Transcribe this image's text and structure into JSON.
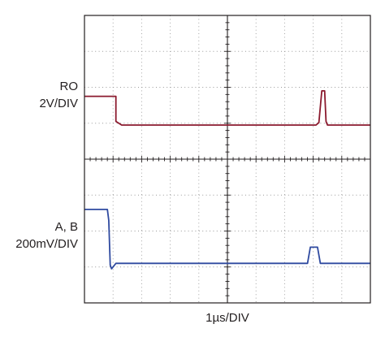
{
  "chart_data": {
    "type": "line",
    "title": "",
    "xlabel": "1µs/DIV",
    "grid": true,
    "x_divisions": 10,
    "y_divisions": 8,
    "x_unit_per_div": "1µs",
    "channels": [
      {
        "name": "RO",
        "scale_label": "2V/DIV",
        "color": "#8b1a2e",
        "trace_div": [
          [
            0.0,
            5.75
          ],
          [
            1.1,
            5.75
          ],
          [
            1.1,
            5.05
          ],
          [
            1.3,
            4.95
          ],
          [
            1.7,
            4.95
          ],
          [
            8.1,
            4.95
          ],
          [
            8.2,
            5.02
          ],
          [
            8.3,
            5.9
          ],
          [
            8.4,
            5.9
          ],
          [
            8.45,
            5.05
          ],
          [
            8.5,
            4.95
          ],
          [
            10.0,
            4.95
          ]
        ]
      },
      {
        "name": "A, B",
        "scale_label": "200mV/DIV",
        "color": "#2f4aa0",
        "trace_div": [
          [
            0.0,
            2.6
          ],
          [
            0.8,
            2.6
          ],
          [
            0.85,
            2.3
          ],
          [
            0.9,
            1.05
          ],
          [
            0.95,
            0.95
          ],
          [
            1.1,
            1.1
          ],
          [
            1.6,
            1.1
          ],
          [
            2.0,
            1.1
          ],
          [
            7.8,
            1.1
          ],
          [
            7.9,
            1.55
          ],
          [
            8.15,
            1.55
          ],
          [
            8.25,
            1.1
          ],
          [
            10.0,
            1.1
          ]
        ]
      }
    ]
  },
  "labels": {
    "ro_name": "RO",
    "ro_scale": "2V/DIV",
    "ab_name": "A, B",
    "ab_scale": "200mV/DIV",
    "time_scale": "1µs/DIV"
  }
}
